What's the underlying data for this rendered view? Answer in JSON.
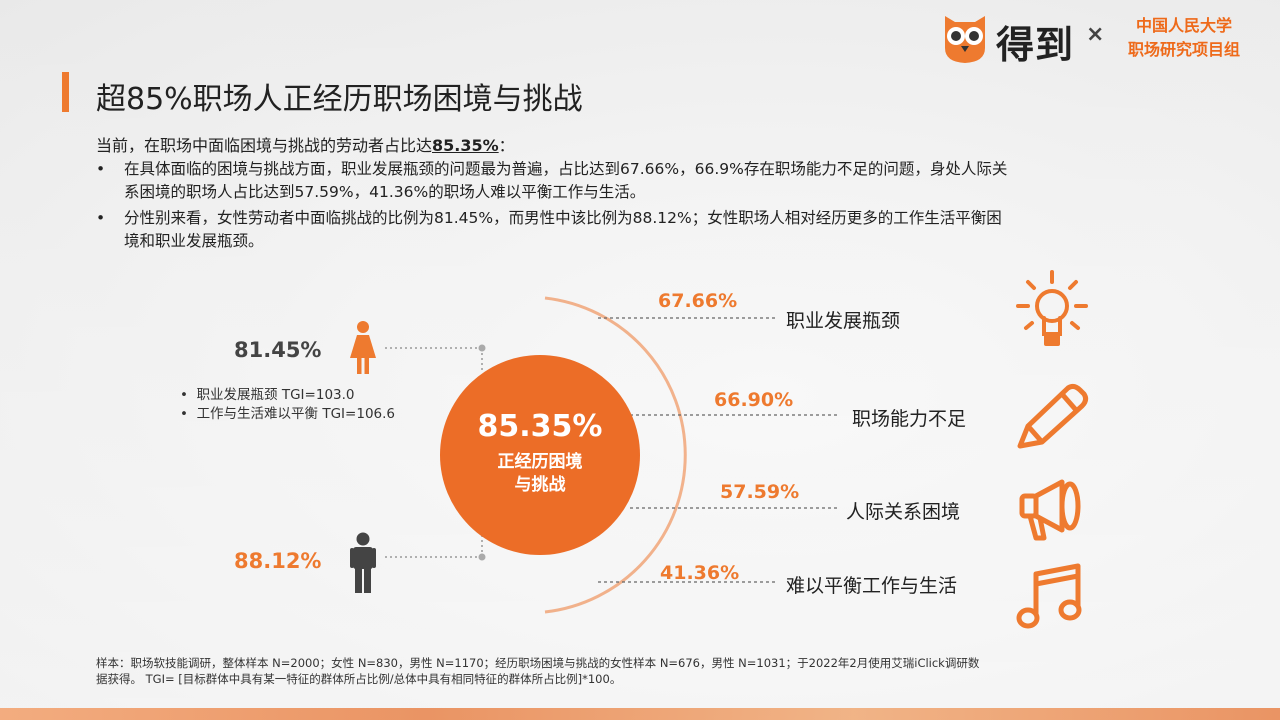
{
  "header": {
    "title": "超85%职场人正经历职场困境与挑战",
    "brand": "得到",
    "brand_x": "×",
    "partner_line1": "中国人民大学",
    "partner_line2": "职场研究项目组"
  },
  "intro": {
    "prefix": "当前，在职场中面临困境与挑战的劳动者占比达",
    "highlight": "85.35%",
    "suffix": "：",
    "bullet": "•",
    "bullet1_line1": "在具体面临的困境与挑战方面，职业发展瓶颈的问题最为普遍，占比达到67.66%，66.9%存在职场能力不足的问题，身处人际关",
    "bullet1_line2": "系困境的职场人占比达到57.59%，41.36%的职场人难以平衡工作与生活。",
    "bullet2_line1": "分性别来看，女性劳动者中面临挑战的比例为81.45%，而男性中该比例为88.12%；女性职场人相对经历更多的工作生活平衡困",
    "bullet2_line2": "境和职业发展瓶颈。"
  },
  "left": {
    "female_pct": "81.45%",
    "male_pct": "88.12%",
    "tgi_1": "职业发展瓶颈 TGI=103.0",
    "tgi_2": "工作与生活难以平衡 TGI=106.6"
  },
  "center": {
    "pct": "85.35%",
    "label": "正经历困境与挑战"
  },
  "items": [
    {
      "pct": "67.66%",
      "label": "职业发展瓶颈"
    },
    {
      "pct": "66.90%",
      "label": "职场能力不足"
    },
    {
      "pct": "57.59%",
      "label": "人际关系困境"
    },
    {
      "pct": "41.36%",
      "label": "难以平衡工作与生活"
    }
  ],
  "note": {
    "line1": "样本：职场软技能调研，整体样本 N=2000；女性 N=830，男性 N=1170；经历职场困境与挑战的女性样本 N=676，男性 N=1031；于2022年2月使用艾瑞iClick调研数",
    "line2": "据获得。 TGI= [目标群体中具有某一特征的群体所占比例/总体中具有相同特征的群体所占比例]*100。"
  },
  "colors": {
    "accent": "#ee7a2f",
    "circle": "#ec6d27",
    "male": "#444444"
  }
}
